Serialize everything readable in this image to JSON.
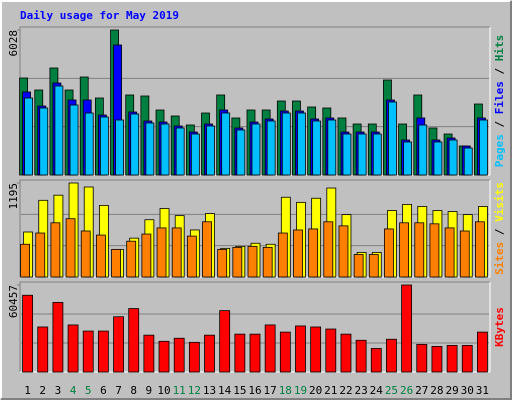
{
  "chart_data": {
    "type": "bar",
    "title": "Daily usage for May 2019",
    "categories": [
      "1",
      "2",
      "3",
      "4",
      "5",
      "6",
      "7",
      "8",
      "9",
      "10",
      "11",
      "12",
      "13",
      "14",
      "15",
      "16",
      "17",
      "18",
      "19",
      "20",
      "21",
      "22",
      "23",
      "24",
      "25",
      "26",
      "27",
      "28",
      "29",
      "30",
      "31"
    ],
    "category_colors": [
      "#000000",
      "#000000",
      "#000000",
      "#008040",
      "#008040",
      "#000000",
      "#000000",
      "#000000",
      "#000000",
      "#000000",
      "#008040",
      "#008040",
      "#000000",
      "#000000",
      "#000000",
      "#000000",
      "#000000",
      "#008040",
      "#008040",
      "#000000",
      "#000000",
      "#000000",
      "#000000",
      "#000000",
      "#008040",
      "#008040",
      "#000000",
      "#000000",
      "#000000",
      "#000000",
      "#000000"
    ],
    "legend_separator": " / ",
    "panels": [
      {
        "ylim": [
          0,
          6028
        ],
        "yticks": [
          6028
        ],
        "series": [
          {
            "name": "Hits",
            "color": "#008040",
            "values": [
              4032,
              3533,
              4448,
              3533,
              4074,
              3201,
              6028,
              3326,
              3284,
              2702,
              2453,
              2079,
              2577,
              3326,
              2370,
              2702,
              2702,
              3076,
              3076,
              2827,
              2785,
              2370,
              2120,
              2120,
              3949,
              2120,
              3326,
              1954,
              1704,
              1206,
              2951
            ]
          },
          {
            "name": "Files",
            "color": "#0000ff",
            "values": [
              3450,
              2868,
              3824,
              3118,
              3118,
              2494,
              5404,
              2619,
              2245,
              2203,
              2037,
              1787,
              2120,
              2702,
              1954,
              2203,
              2328,
              2660,
              2660,
              2328,
              2370,
              1787,
              1787,
              1787,
              3118,
              1455,
              2370,
              1455,
              1538,
              1205,
              2370
            ]
          },
          {
            "name": "Pages",
            "color": "#00c0ff",
            "values": [
              3201,
              2785,
              3700,
              2910,
              2577,
              2411,
              2286,
              2536,
              2162,
              2120,
              1954,
              1704,
              2037,
              2577,
              1871,
              2120,
              2245,
              2577,
              2577,
              2245,
              2286,
              1704,
              1704,
              1704,
              3035,
              1372,
              2078,
              1372,
              1455,
              1122,
              2286
            ]
          }
        ]
      },
      {
        "ylim": [
          0,
          1195
        ],
        "yticks": [
          1195
        ],
        "series": [
          {
            "name": "Visits",
            "color": "#ffff00",
            "values": [
              572,
              975,
              1040,
              1195,
              1144,
              910,
              351,
              494,
              728,
              871,
              780,
              598,
              806,
              364,
              390,
              429,
              416,
              1014,
              949,
              1001,
              1131,
              793,
              312,
              312,
              845,
              923,
              897,
              845,
              832,
              793,
              897
            ]
          },
          {
            "name": "Sites",
            "color": "#ff8000",
            "values": [
              416,
              559,
              689,
              741,
              585,
              533,
              351,
              455,
              546,
              624,
              624,
              520,
              702,
              351,
              377,
              390,
              377,
              559,
              598,
              611,
              702,
              650,
              286,
              286,
              611,
              689,
              689,
              676,
              624,
              585,
              702
            ]
          }
        ]
      },
      {
        "ylim": [
          0,
          60457
        ],
        "yticks": [
          60457
        ],
        "series": [
          {
            "name": "KBytes",
            "color": "#ff0000",
            "values": [
              53325,
              31284,
              48348,
              32706,
              28440,
              28440,
              38394,
              44082,
              25596,
              21330,
              23463,
              20619,
              25596,
              42660,
              26307,
              26307,
              32706,
              27729,
              31995,
              31284,
              29862,
              26307,
              22041,
              16353,
              22752,
              60457,
              19197,
              17775,
              18486,
              18486,
              27729
            ]
          }
        ]
      }
    ]
  }
}
